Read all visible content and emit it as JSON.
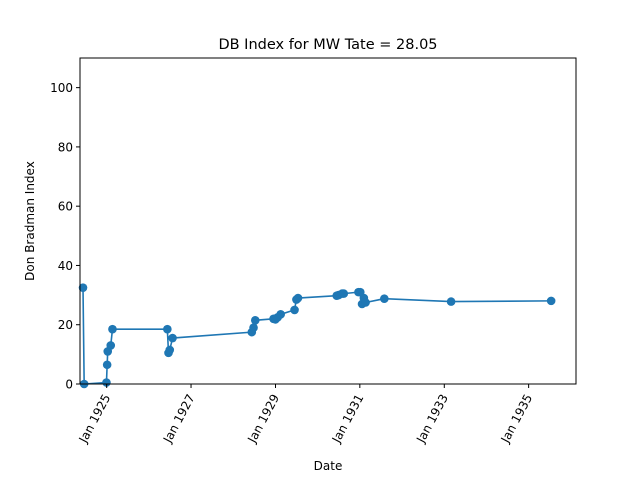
{
  "chart_data": {
    "type": "line",
    "title": "DB Index for MW Tate = 28.05",
    "xlabel": "Date",
    "ylabel": "Don Bradman Index",
    "x_range": [
      "1924-05-15",
      "1936-02-15"
    ],
    "ylim": [
      0,
      110
    ],
    "x_ticks": [
      {
        "date": "1925-01-01",
        "label": "Jan 1925"
      },
      {
        "date": "1927-01-01",
        "label": "Jan 1927"
      },
      {
        "date": "1929-01-01",
        "label": "Jan 1929"
      },
      {
        "date": "1931-01-01",
        "label": "Jan 1931"
      },
      {
        "date": "1933-01-01",
        "label": "Jan 1933"
      },
      {
        "date": "1935-01-01",
        "label": "Jan 1935"
      }
    ],
    "y_ticks": [
      0,
      20,
      40,
      60,
      80,
      100
    ],
    "grid": false,
    "legend": "none",
    "line_color": "#1f77b4",
    "series": [
      {
        "points": [
          {
            "x": "1924-06-10",
            "y": 32.5
          },
          {
            "x": "1924-06-20",
            "y": 0
          },
          {
            "x": "1924-12-30",
            "y": 0.5
          },
          {
            "x": "1925-01-05",
            "y": 6.5
          },
          {
            "x": "1925-01-10",
            "y": 11
          },
          {
            "x": "1925-02-05",
            "y": 13
          },
          {
            "x": "1925-02-20",
            "y": 18.5
          },
          {
            "x": "1926-06-10",
            "y": 18.5
          },
          {
            "x": "1926-06-20",
            "y": 10.5
          },
          {
            "x": "1926-07-01",
            "y": 11.5
          },
          {
            "x": "1926-07-25",
            "y": 15.5
          },
          {
            "x": "1928-06-10",
            "y": 17.5
          },
          {
            "x": "1928-06-25",
            "y": 19
          },
          {
            "x": "1928-07-10",
            "y": 21.5
          },
          {
            "x": "1928-12-15",
            "y": 22
          },
          {
            "x": "1929-01-01",
            "y": 21.8
          },
          {
            "x": "1929-01-20",
            "y": 22.5
          },
          {
            "x": "1929-02-15",
            "y": 23.5
          },
          {
            "x": "1929-06-15",
            "y": 25
          },
          {
            "x": "1929-07-01",
            "y": 28.5
          },
          {
            "x": "1929-07-15",
            "y": 29
          },
          {
            "x": "1930-06-15",
            "y": 29.8
          },
          {
            "x": "1930-07-01",
            "y": 30
          },
          {
            "x": "1930-08-01",
            "y": 30.5
          },
          {
            "x": "1930-08-15",
            "y": 30.5
          },
          {
            "x": "1930-12-20",
            "y": 31
          },
          {
            "x": "1931-01-05",
            "y": 31
          },
          {
            "x": "1931-01-20",
            "y": 27
          },
          {
            "x": "1931-02-05",
            "y": 29
          },
          {
            "x": "1931-02-20",
            "y": 27.5
          },
          {
            "x": "1931-08-01",
            "y": 28.8
          },
          {
            "x": "1933-03-01",
            "y": 27.8
          },
          {
            "x": "1935-07-15",
            "y": 28.05
          }
        ]
      }
    ]
  }
}
